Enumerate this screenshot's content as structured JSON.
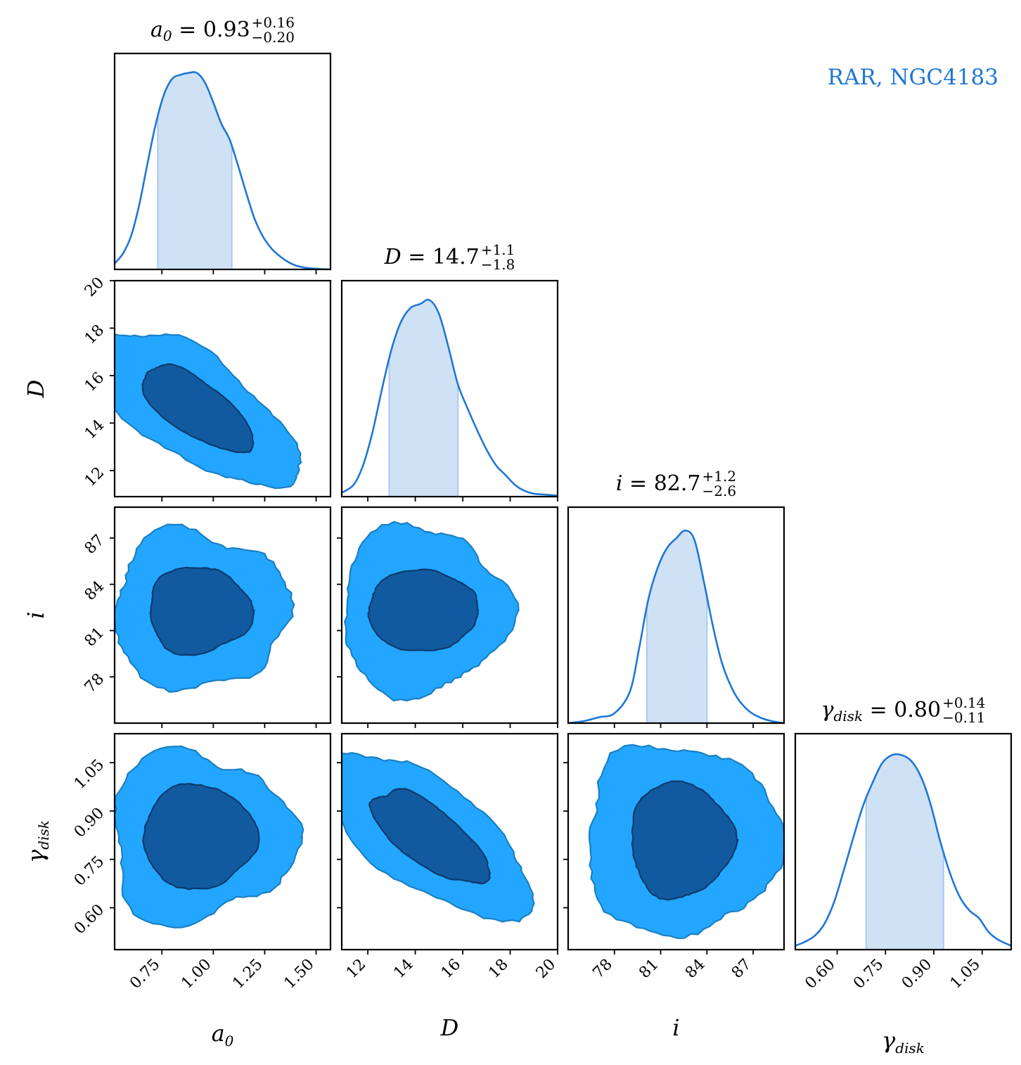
{
  "annotation": "RAR, NGC4183",
  "colors": {
    "line": "#1f77d4",
    "band": "#cfe2f5",
    "band_edge": "#a9c9ee",
    "contour_outer": "#23a6ff",
    "contour_outer_edge": "#1a7fc4",
    "contour_inner": "#125aa0",
    "contour_inner_edge": "#0b3a6a"
  },
  "chart_data": {
    "type": "corner",
    "parameters": [
      {
        "key": "a0",
        "label": "a_0",
        "title": "a_0 = 0.93^{+0.16}_{-0.20}",
        "title_symbol": "a",
        "title_subscript": "0",
        "median": "0.93",
        "plus": "+0.16",
        "minus": "−0.20",
        "range": [
          0.52,
          1.57
        ],
        "ticks": [
          0.75,
          1.0,
          1.25,
          1.5
        ],
        "tick_labels": [
          "0.75",
          "1.00",
          "1.25",
          "1.50"
        ],
        "band": [
          0.73,
          1.09
        ]
      },
      {
        "key": "D",
        "label": "D",
        "title": "D = 14.7^{+1.1}_{-1.8}",
        "title_symbol": "D",
        "title_subscript": "",
        "median": "14.7",
        "plus": "+1.1",
        "minus": "−1.8",
        "range": [
          10.9,
          20.0
        ],
        "ticks": [
          12,
          14,
          16,
          18,
          20
        ],
        "tick_labels": [
          "12",
          "14",
          "16",
          "18",
          "20"
        ],
        "band": [
          12.9,
          15.8
        ]
      },
      {
        "key": "i",
        "label": "i",
        "title": "i = 82.7^{+1.2}_{-2.6}",
        "title_symbol": "i",
        "title_subscript": "",
        "median": "82.7",
        "plus": "+1.2",
        "minus": "−2.6",
        "range": [
          75.0,
          89.0
        ],
        "ticks": [
          78,
          81,
          84,
          87
        ],
        "tick_labels": [
          "78",
          "81",
          "84",
          "87"
        ],
        "band": [
          80.1,
          84.0
        ]
      },
      {
        "key": "gamma_disk",
        "label": "γ_disk",
        "title": "γ_disk = 0.80^{+0.14}_{-0.11}",
        "title_symbol": "γ",
        "title_subscript": "disk",
        "median": "0.80",
        "plus": "+0.14",
        "minus": "−0.11",
        "range": [
          0.47,
          1.14
        ],
        "ticks": [
          0.6,
          0.75,
          0.9,
          1.05
        ],
        "tick_labels": [
          "0.60",
          "0.75",
          "0.90",
          "1.05"
        ],
        "band": [
          0.69,
          0.93
        ]
      }
    ],
    "marginals": [
      {
        "x": [
          0.52,
          0.56,
          0.6,
          0.64,
          0.68,
          0.72,
          0.76,
          0.8,
          0.84,
          0.88,
          0.92,
          0.96,
          1.0,
          1.04,
          1.08,
          1.12,
          1.16,
          1.2,
          1.24,
          1.28,
          1.32,
          1.36,
          1.4,
          1.44,
          1.48,
          1.52,
          1.57
        ],
        "y": [
          0.03,
          0.08,
          0.17,
          0.33,
          0.54,
          0.74,
          0.89,
          0.97,
          0.99,
          1.0,
          1.0,
          0.95,
          0.85,
          0.74,
          0.66,
          0.53,
          0.39,
          0.26,
          0.17,
          0.11,
          0.07,
          0.04,
          0.02,
          0.01,
          0.005,
          0.002,
          0.0
        ]
      },
      {
        "x": [
          10.9,
          11.4,
          11.8,
          12.2,
          12.6,
          13.0,
          13.4,
          13.8,
          14.2,
          14.6,
          15.0,
          15.4,
          15.8,
          16.2,
          16.6,
          17.0,
          17.4,
          17.8,
          18.2,
          18.6,
          19.0,
          19.5,
          20.0
        ],
        "y": [
          0.02,
          0.06,
          0.16,
          0.33,
          0.55,
          0.75,
          0.89,
          0.96,
          0.98,
          1.0,
          0.93,
          0.76,
          0.57,
          0.45,
          0.34,
          0.24,
          0.16,
          0.11,
          0.06,
          0.03,
          0.015,
          0.01,
          0.005
        ]
      },
      {
        "x": [
          75.0,
          76.0,
          77.0,
          78.0,
          79.0,
          79.6,
          80.2,
          80.8,
          81.4,
          82.0,
          82.6,
          83.2,
          83.8,
          84.4,
          85.0,
          85.8,
          86.6,
          87.4,
          88.2,
          89.0
        ],
        "y": [
          0.0,
          0.01,
          0.03,
          0.05,
          0.16,
          0.38,
          0.63,
          0.79,
          0.89,
          0.94,
          0.98,
          0.93,
          0.72,
          0.49,
          0.3,
          0.15,
          0.07,
          0.03,
          0.01,
          0.0
        ]
      },
      {
        "x": [
          0.47,
          0.5,
          0.53,
          0.56,
          0.59,
          0.62,
          0.65,
          0.68,
          0.71,
          0.74,
          0.77,
          0.8,
          0.83,
          0.86,
          0.89,
          0.92,
          0.95,
          0.98,
          1.01,
          1.04,
          1.07,
          1.1,
          1.14
        ],
        "y": [
          0.02,
          0.04,
          0.07,
          0.13,
          0.24,
          0.4,
          0.57,
          0.73,
          0.85,
          0.95,
          0.99,
          0.99,
          0.96,
          0.88,
          0.74,
          0.55,
          0.39,
          0.27,
          0.2,
          0.16,
          0.09,
          0.05,
          0.02
        ]
      }
    ],
    "contours": [
      {
        "x": "a0",
        "y": "D",
        "levels": [
          "68%",
          "95%"
        ]
      },
      {
        "x": "a0",
        "y": "i",
        "levels": [
          "68%",
          "95%"
        ]
      },
      {
        "x": "D",
        "y": "i",
        "levels": [
          "68%",
          "95%"
        ]
      },
      {
        "x": "a0",
        "y": "gamma_disk",
        "levels": [
          "68%",
          "95%"
        ]
      },
      {
        "x": "D",
        "y": "gamma_disk",
        "levels": [
          "68%",
          "95%"
        ]
      },
      {
        "x": "i",
        "y": "gamma_disk",
        "levels": [
          "68%",
          "95%"
        ]
      }
    ]
  }
}
